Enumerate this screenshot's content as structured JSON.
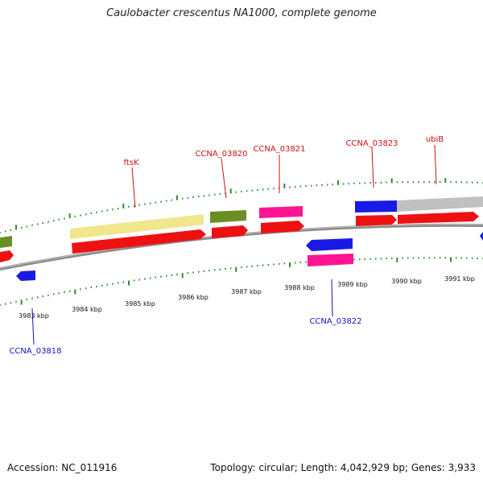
{
  "title": "Caulobacter crescentus NA1000, complete genome",
  "footer": {
    "accession": "Accession: NC_011916",
    "topology": "Topology: circular; Length: 4,042,929 bp; Genes: 3,933"
  },
  "colors": {
    "backbone": "#8a8a8a",
    "tick": "#2e8b2e",
    "cds": "#ee1111",
    "forward_label": "#cc1111",
    "reverse_label": "#1111cc"
  },
  "ticks": [
    "3983 kbp",
    "3984 kbp",
    "3985 kbp",
    "3986 kbp",
    "3987 kbp",
    "3988 kbp",
    "3989 kbp",
    "3990 kbp",
    "3991 kbp"
  ],
  "genes": [
    {
      "label": "CCNA_03818",
      "strand": "reverse",
      "color": "#1a1ae6"
    },
    {
      "label": "ftsK",
      "strand": "forward",
      "color": "#f0e68c"
    },
    {
      "label": "CCNA_03820",
      "strand": "forward",
      "color": "#6b8e23"
    },
    {
      "label": "CCNA_03821",
      "strand": "forward",
      "color": "#ff1493"
    },
    {
      "label": "CCNA_03822",
      "strand": "reverse",
      "color": "#ff1493"
    },
    {
      "label": "CCNA_03823",
      "strand": "forward",
      "color": "#1a1ae6"
    },
    {
      "label": "ubiB",
      "strand": "forward",
      "color": "#c0c0c0"
    }
  ]
}
